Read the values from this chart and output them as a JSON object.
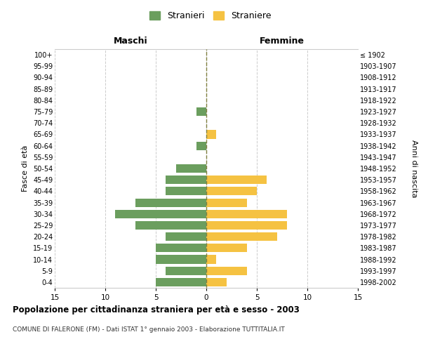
{
  "age_groups": [
    "100+",
    "95-99",
    "90-94",
    "85-89",
    "80-84",
    "75-79",
    "70-74",
    "65-69",
    "60-64",
    "55-59",
    "50-54",
    "45-49",
    "40-44",
    "35-39",
    "30-34",
    "25-29",
    "20-24",
    "15-19",
    "10-14",
    "5-9",
    "0-4"
  ],
  "birth_years": [
    "≤ 1902",
    "1903-1907",
    "1908-1912",
    "1913-1917",
    "1918-1922",
    "1923-1927",
    "1928-1932",
    "1933-1937",
    "1938-1942",
    "1943-1947",
    "1948-1952",
    "1953-1957",
    "1958-1962",
    "1963-1967",
    "1968-1972",
    "1973-1977",
    "1978-1982",
    "1983-1987",
    "1988-1992",
    "1993-1997",
    "1998-2002"
  ],
  "maschi": [
    0,
    0,
    0,
    0,
    0,
    1,
    0,
    0,
    1,
    0,
    3,
    4,
    4,
    7,
    9,
    7,
    4,
    5,
    5,
    4,
    5
  ],
  "femmine": [
    0,
    0,
    0,
    0,
    0,
    0,
    0,
    1,
    0,
    0,
    0,
    6,
    5,
    4,
    8,
    8,
    7,
    4,
    1,
    4,
    2
  ],
  "color_maschi": "#6b9e5e",
  "color_femmine": "#f5c242",
  "color_center_line": "#808040",
  "xlim": 15,
  "title": "Popolazione per cittadinanza straniera per età e sesso - 2003",
  "subtitle": "COMUNE DI FALERONE (FM) - Dati ISTAT 1° gennaio 2003 - Elaborazione TUTTITALIA.IT",
  "ylabel_left": "Fasce di età",
  "ylabel_right": "Anni di nascita",
  "xlabel_maschi": "Maschi",
  "xlabel_femmine": "Femmine",
  "legend_maschi": "Stranieri",
  "legend_femmine": "Straniere",
  "background_color": "#ffffff",
  "grid_color": "#cccccc"
}
